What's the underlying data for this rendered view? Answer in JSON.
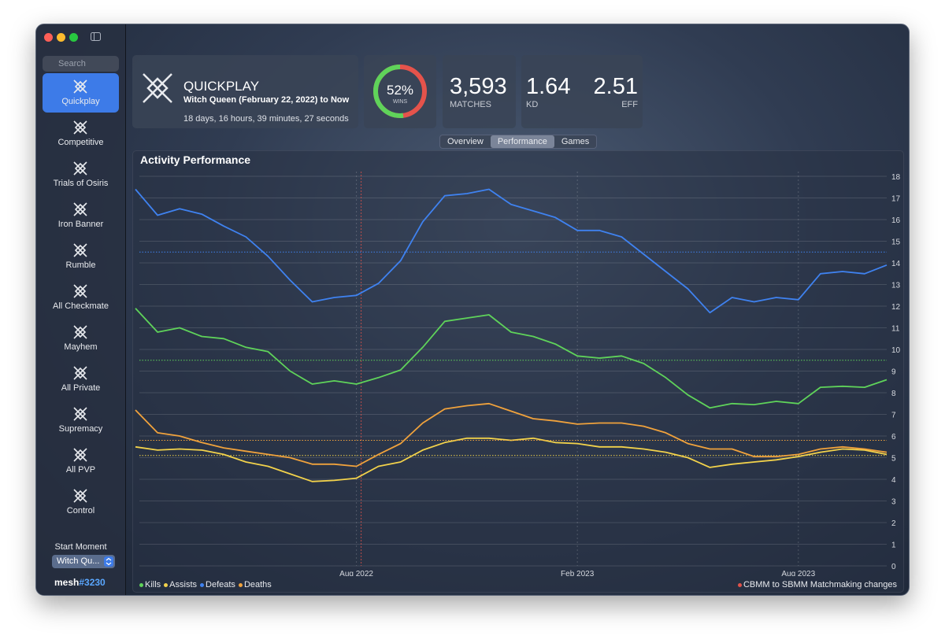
{
  "sidebar": {
    "search": "Search",
    "items": [
      "Quickplay",
      "Competitive",
      "Trials of Osiris",
      "Iron Banner",
      "Rumble",
      "All Checkmate",
      "Mayhem",
      "All Private",
      "Supremacy",
      "All PVP",
      "Control"
    ],
    "active": 0,
    "start_moment": "Start Moment",
    "select": "Witch Qu...",
    "user": "mesh",
    "tag": "#3230"
  },
  "header": {
    "title": "QUICKPLAY",
    "subtitle": "Witch Queen (February 22, 2022) to Now",
    "duration": "18 days, 16 hours, 39 minutes, 27 seconds",
    "wins": {
      "value": 52,
      "value_label": "52%",
      "label": "WINS"
    },
    "matches": {
      "value": "3,593",
      "label": "MATCHES"
    },
    "kd": {
      "value": "1.64",
      "label": "KD"
    },
    "eff": {
      "value": "2.51",
      "label": "EFF"
    }
  },
  "tabs": {
    "items": [
      "Overview",
      "Performance",
      "Games"
    ],
    "active": 1
  },
  "chart_data": {
    "type": "line",
    "title": "Activity Performance",
    "categories": [
      null,
      null,
      null,
      null,
      null,
      null,
      null,
      null,
      null,
      null,
      "Aug 2022",
      null,
      null,
      null,
      null,
      null,
      null,
      null,
      null,
      null,
      "Feb 2023",
      null,
      null,
      null,
      null,
      null,
      null,
      null,
      null,
      null,
      "Aug 2023",
      null,
      null,
      null,
      null
    ],
    "series": [
      {
        "name": "Kills",
        "color": "#5fd35a",
        "average": 9.5,
        "values": [
          11.9,
          10.8,
          11.0,
          10.6,
          10.5,
          10.1,
          9.9,
          9.0,
          8.4,
          8.55,
          8.4,
          8.7,
          9.05,
          10.1,
          11.3,
          11.45,
          11.6,
          10.8,
          10.6,
          10.25,
          9.7,
          9.6,
          9.7,
          9.35,
          8.7,
          7.9,
          7.3,
          7.5,
          7.45,
          7.6,
          7.5,
          8.25,
          8.3,
          8.25,
          8.6
        ]
      },
      {
        "name": "Assists",
        "color": "#f2d24b",
        "average": 5.1,
        "values": [
          5.5,
          5.35,
          5.4,
          5.35,
          5.15,
          4.8,
          4.6,
          4.25,
          3.9,
          3.95,
          4.05,
          4.6,
          4.8,
          5.35,
          5.7,
          5.9,
          5.9,
          5.8,
          5.9,
          5.7,
          5.65,
          5.5,
          5.5,
          5.4,
          5.25,
          5.0,
          4.55,
          4.7,
          4.8,
          4.9,
          5.05,
          5.25,
          5.4,
          5.35,
          5.15
        ]
      },
      {
        "name": "Defeats",
        "color": "#3f82f0",
        "average": 14.5,
        "values": [
          17.4,
          16.2,
          16.5,
          16.25,
          15.7,
          15.2,
          14.3,
          13.2,
          12.2,
          12.4,
          12.5,
          13.05,
          14.1,
          15.9,
          17.1,
          17.2,
          17.4,
          16.7,
          16.4,
          16.1,
          15.5,
          15.5,
          15.2,
          14.4,
          13.6,
          12.8,
          11.7,
          12.4,
          12.2,
          12.4,
          12.3,
          13.5,
          13.6,
          13.5,
          13.9
        ]
      },
      {
        "name": "Deaths",
        "color": "#f0a23c",
        "average": 5.8,
        "values": [
          7.2,
          6.15,
          6.0,
          5.7,
          5.45,
          5.3,
          5.15,
          5.0,
          4.7,
          4.7,
          4.6,
          5.15,
          5.65,
          6.6,
          7.25,
          7.4,
          7.5,
          7.15,
          6.8,
          6.7,
          6.55,
          6.6,
          6.6,
          6.45,
          6.15,
          5.65,
          5.4,
          5.4,
          5.05,
          5.05,
          5.15,
          5.4,
          5.5,
          5.4,
          5.25
        ]
      }
    ],
    "ylim": [
      0,
      18
    ],
    "yticks": [
      0,
      1,
      2,
      3,
      4,
      5,
      6,
      7,
      8,
      9,
      10,
      11,
      12,
      13,
      14,
      15,
      16,
      17,
      18
    ],
    "grid": true,
    "annotation": {
      "text": "CBMM to SBMM Matchmaking changes",
      "color": "#e0524a",
      "x": "Aug 2022"
    }
  }
}
